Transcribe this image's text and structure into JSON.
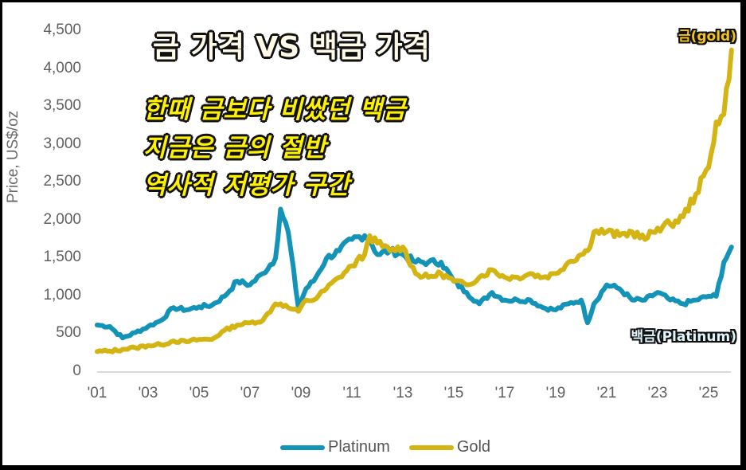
{
  "title": "금 가격 VS 백금 가격",
  "subtitle_lines": [
    "한때 금보다 비쌌던 백금",
    "지금은 금의 절반",
    "역사적 저평가 구간"
  ],
  "annotations": {
    "gold": "금(gold)",
    "platinum": "백금(Platinum)"
  },
  "colors": {
    "platinum": "#1493b8",
    "gold": "#d4b413",
    "gridline": "#d9d9d9",
    "axis_text": "#5f5f5f",
    "frame": "#000000"
  },
  "legend": [
    {
      "label": "Platinum",
      "color": "#1493b8"
    },
    {
      "label": "Gold",
      "color": "#d4b413"
    }
  ],
  "axes": {
    "ylabel": "Price, US$/oz",
    "yticks": [
      "0",
      "500",
      "1,000",
      "1,500",
      "2,000",
      "2,500",
      "3,000",
      "3,500",
      "4,000",
      "4,500"
    ],
    "xticks": [
      "'01",
      "'03",
      "'05",
      "'07",
      "'09",
      "'11",
      "'13",
      "'15",
      "'17",
      "'19",
      "'21",
      "'23",
      "'25"
    ]
  },
  "chart_data": {
    "type": "line",
    "title": "금 가격 VS 백금 가격",
    "xlabel": "",
    "ylabel": "Price, US$/oz",
    "ylim": [
      0,
      4500
    ],
    "xlim": [
      2001,
      2025.9
    ],
    "grid": false,
    "legend_position": "bottom",
    "x": [
      2001.0,
      2001.5,
      2002.0,
      2002.5,
      2003.0,
      2003.5,
      2004.0,
      2004.5,
      2005.0,
      2005.5,
      2006.0,
      2006.5,
      2007.0,
      2007.5,
      2008.0,
      2008.2,
      2008.5,
      2008.9,
      2009.2,
      2009.5,
      2010.0,
      2010.5,
      2011.0,
      2011.5,
      2011.7,
      2012.0,
      2012.5,
      2013.0,
      2013.5,
      2014.0,
      2014.5,
      2015.0,
      2015.5,
      2016.0,
      2016.5,
      2017.0,
      2017.5,
      2018.0,
      2018.5,
      2019.0,
      2019.5,
      2020.0,
      2020.25,
      2020.5,
      2021.0,
      2021.5,
      2022.0,
      2022.5,
      2023.0,
      2023.5,
      2024.0,
      2024.5,
      2025.0,
      2025.3,
      2025.6,
      2025.9
    ],
    "series": [
      {
        "name": "Platinum",
        "values": [
          620,
          600,
          450,
          520,
          600,
          680,
          850,
          820,
          860,
          880,
          1000,
          1200,
          1150,
          1300,
          1500,
          2150,
          1850,
          850,
          1100,
          1200,
          1500,
          1600,
          1750,
          1800,
          1750,
          1550,
          1600,
          1550,
          1450,
          1450,
          1450,
          1200,
          1050,
          900,
          1050,
          950,
          950,
          950,
          850,
          820,
          900,
          950,
          650,
          900,
          1150,
          1100,
          950,
          950,
          1050,
          950,
          900,
          950,
          1000,
          1000,
          1450,
          1650
        ]
      },
      {
        "name": "Gold",
        "values": [
          270,
          275,
          300,
          320,
          350,
          360,
          410,
          400,
          430,
          430,
          550,
          620,
          650,
          680,
          900,
          900,
          850,
          800,
          950,
          950,
          1100,
          1250,
          1400,
          1550,
          1800,
          1700,
          1600,
          1650,
          1300,
          1250,
          1300,
          1200,
          1150,
          1250,
          1350,
          1250,
          1250,
          1300,
          1250,
          1300,
          1450,
          1550,
          1600,
          1850,
          1850,
          1800,
          1850,
          1750,
          1900,
          1950,
          2050,
          2350,
          2700,
          3300,
          3400,
          4250
        ]
      }
    ]
  }
}
